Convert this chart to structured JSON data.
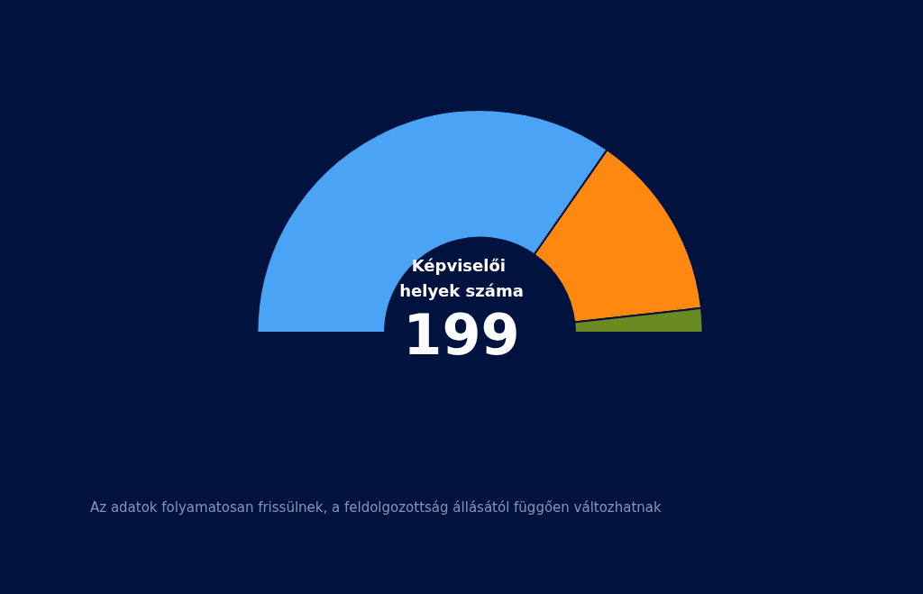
{
  "chart_data": {
    "type": "donut",
    "title": "Képviselői helyek száma",
    "subtitle": "199",
    "categories": [
      null,
      null,
      null
    ],
    "values": [
      69.35,
      27.14,
      3.51
    ],
    "colors": [
      "#4aa3f5",
      "#ff8811",
      "#6a8a22"
    ],
    "annotations": [
      "Az adatok folyamatosan frissülnek, a feldolgozottság állásától függően változhatnak"
    ]
  }
}
